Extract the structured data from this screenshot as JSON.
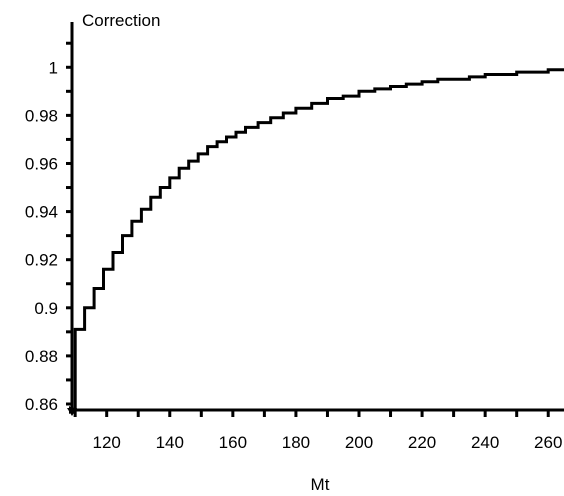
{
  "chart_data": {
    "type": "line",
    "title": "",
    "xlabel": "Mt",
    "ylabel": "Correction",
    "xlim": [
      109,
      265
    ],
    "ylim": [
      0.8575,
      1.0155
    ],
    "x_ticks": [
      120,
      140,
      160,
      180,
      200,
      220,
      240,
      260
    ],
    "y_ticks": [
      0.86,
      0.88,
      0.9,
      0.92,
      0.94,
      0.96,
      0.98,
      1
    ],
    "x_tick_labels": [
      "120",
      "140",
      "160",
      "180",
      "200",
      "220",
      "240",
      "260"
    ],
    "y_tick_labels": [
      "0.86",
      "0.88",
      "0.9",
      "0.92",
      "0.94",
      "0.96",
      "0.98",
      "1"
    ],
    "grid": false,
    "legend": "none",
    "line_color": "#000000",
    "series": [
      {
        "step": "post",
        "x": [
          109.5,
          110,
          113,
          116,
          119,
          122,
          125,
          128,
          131,
          134,
          137,
          140,
          143,
          146,
          149,
          152,
          155,
          158,
          161,
          164,
          168,
          172,
          176,
          180,
          185,
          190,
          195,
          200,
          205,
          210,
          215,
          220,
          225,
          230,
          235,
          240,
          245,
          250,
          255,
          260,
          265
        ],
        "y": [
          0.858,
          0.891,
          0.9,
          0.908,
          0.916,
          0.923,
          0.93,
          0.936,
          0.941,
          0.946,
          0.95,
          0.954,
          0.958,
          0.961,
          0.964,
          0.967,
          0.969,
          0.971,
          0.973,
          0.975,
          0.977,
          0.979,
          0.981,
          0.983,
          0.985,
          0.987,
          0.988,
          0.99,
          0.991,
          0.992,
          0.993,
          0.994,
          0.995,
          0.995,
          0.996,
          0.997,
          0.997,
          0.998,
          0.998,
          0.999,
          0.999
        ]
      }
    ]
  }
}
